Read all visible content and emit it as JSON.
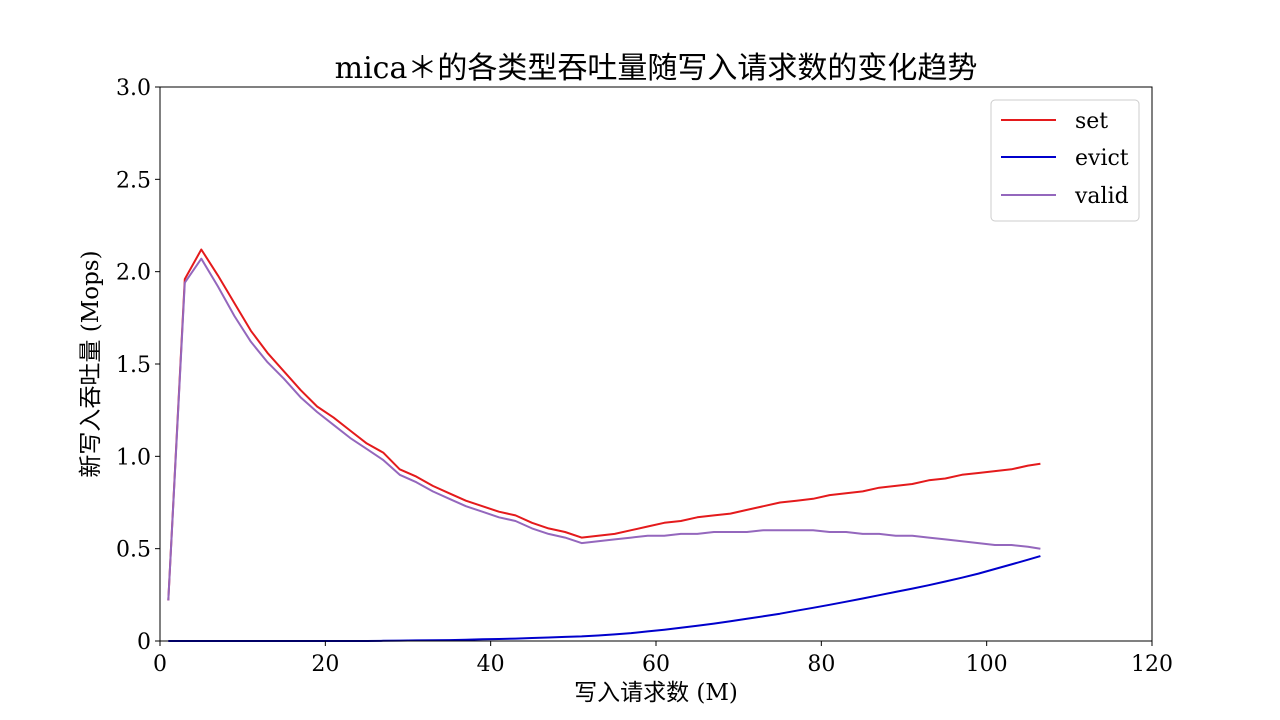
{
  "chart_data": {
    "type": "line",
    "title": "mica＊的各类型吞吐量随写入请求数的变化趋势",
    "xlabel": "写入请求数 (M)",
    "ylabel": "新写入吞吐量 (Mops)",
    "xlim": [
      0,
      120
    ],
    "ylim": [
      0,
      3.0
    ],
    "xticks": [
      0,
      20,
      40,
      60,
      80,
      100,
      120
    ],
    "xtick_labels": [
      "0",
      "20",
      "40",
      "60",
      "80",
      "100",
      "120"
    ],
    "yticks": [
      0,
      0.5,
      1.0,
      1.5,
      2.0,
      2.5,
      3.0
    ],
    "ytick_labels": [
      "0",
      "0.5",
      "1.0",
      "1.5",
      "2.0",
      "2.5",
      "3.0"
    ],
    "grid": false,
    "legend_position": "top-right",
    "x": [
      1,
      3,
      5,
      7,
      9,
      11,
      13,
      15,
      17,
      19,
      21,
      23,
      25,
      27,
      29,
      31,
      33,
      35,
      37,
      39,
      41,
      43,
      45,
      47,
      49,
      51,
      53,
      55,
      57,
      59,
      61,
      63,
      65,
      67,
      69,
      71,
      73,
      75,
      77,
      79,
      81,
      83,
      85,
      87,
      89,
      91,
      93,
      95,
      97,
      99,
      101,
      103,
      105,
      106.5
    ],
    "series": [
      {
        "name": "set",
        "color": "#e41a1c",
        "values": [
          0.22,
          1.96,
          2.12,
          1.98,
          1.83,
          1.68,
          1.56,
          1.46,
          1.36,
          1.27,
          1.21,
          1.14,
          1.07,
          1.02,
          0.93,
          0.89,
          0.84,
          0.8,
          0.76,
          0.73,
          0.7,
          0.68,
          0.64,
          0.61,
          0.59,
          0.56,
          0.57,
          0.58,
          0.6,
          0.62,
          0.64,
          0.65,
          0.67,
          0.68,
          0.69,
          0.71,
          0.73,
          0.75,
          0.76,
          0.77,
          0.79,
          0.8,
          0.81,
          0.83,
          0.84,
          0.85,
          0.87,
          0.88,
          0.9,
          0.91,
          0.92,
          0.93,
          0.95,
          0.96
        ]
      },
      {
        "name": "evict",
        "color": "#0000cc",
        "values": [
          0.0,
          0.0,
          0.0,
          0.0,
          0.0,
          0.0,
          0.0,
          0.0,
          0.0,
          0.0,
          0.0,
          0.0,
          0.0,
          0.001,
          0.002,
          0.003,
          0.004,
          0.005,
          0.007,
          0.009,
          0.011,
          0.013,
          0.016,
          0.019,
          0.022,
          0.025,
          0.03,
          0.036,
          0.043,
          0.052,
          0.061,
          0.072,
          0.083,
          0.094,
          0.107,
          0.12,
          0.134,
          0.148,
          0.164,
          0.18,
          0.196,
          0.213,
          0.23,
          0.248,
          0.266,
          0.284,
          0.302,
          0.322,
          0.343,
          0.365,
          0.39,
          0.415,
          0.44,
          0.46
        ]
      },
      {
        "name": "valid",
        "color": "#9467bd",
        "values": [
          0.22,
          1.94,
          2.07,
          1.92,
          1.76,
          1.62,
          1.51,
          1.42,
          1.32,
          1.24,
          1.17,
          1.1,
          1.04,
          0.98,
          0.9,
          0.86,
          0.81,
          0.77,
          0.73,
          0.7,
          0.67,
          0.65,
          0.61,
          0.58,
          0.56,
          0.53,
          0.54,
          0.55,
          0.56,
          0.57,
          0.57,
          0.58,
          0.58,
          0.59,
          0.59,
          0.59,
          0.6,
          0.6,
          0.6,
          0.6,
          0.59,
          0.59,
          0.58,
          0.58,
          0.57,
          0.57,
          0.56,
          0.55,
          0.54,
          0.53,
          0.52,
          0.52,
          0.51,
          0.5
        ]
      }
    ]
  }
}
